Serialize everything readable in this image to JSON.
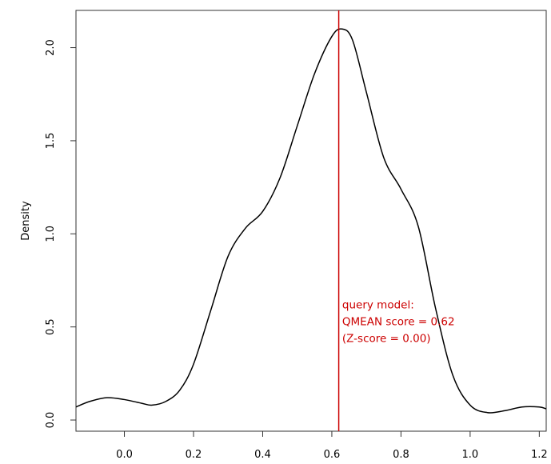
{
  "chart_data": {
    "type": "line",
    "title": "",
    "xlabel": "",
    "ylabel": "Density",
    "xlim": [
      -0.14,
      1.22
    ],
    "ylim": [
      -0.06,
      2.2
    ],
    "xticks": [
      0.0,
      0.2,
      0.4,
      0.6,
      0.8,
      1.0,
      1.2
    ],
    "xtick_labels": [
      "0.0",
      "0.2",
      "0.4",
      "0.6",
      "0.8",
      "1.0",
      "1.2"
    ],
    "yticks": [
      0.0,
      0.5,
      1.0,
      1.5,
      2.0
    ],
    "ytick_labels": [
      "0.0",
      "0.5",
      "1.0",
      "1.5",
      "2.0"
    ],
    "grid": false,
    "legend": "none",
    "series": [
      {
        "x": [
          -0.14,
          -0.1,
          -0.05,
          0.0,
          0.05,
          0.08,
          0.12,
          0.16,
          0.2,
          0.25,
          0.3,
          0.35,
          0.4,
          0.45,
          0.5,
          0.55,
          0.6,
          0.63,
          0.66,
          0.7,
          0.75,
          0.8,
          0.85,
          0.9,
          0.95,
          1.0,
          1.05,
          1.1,
          1.15,
          1.2,
          1.22
        ],
        "y": [
          0.07,
          0.1,
          0.12,
          0.11,
          0.09,
          0.08,
          0.1,
          0.16,
          0.3,
          0.59,
          0.88,
          1.03,
          1.12,
          1.3,
          1.58,
          1.86,
          2.06,
          2.1,
          2.04,
          1.76,
          1.41,
          1.24,
          1.04,
          0.6,
          0.24,
          0.08,
          0.04,
          0.05,
          0.07,
          0.07,
          0.06
        ],
        "color": "#000000"
      }
    ],
    "vline": {
      "x": 0.62,
      "color": "#cc0000"
    },
    "annotation": {
      "lines": [
        "query model:",
        "QMEAN score = 0.62",
        "(Z-score = 0.00)"
      ],
      "x": 0.63,
      "y": 0.6,
      "color": "#cc0000"
    }
  }
}
